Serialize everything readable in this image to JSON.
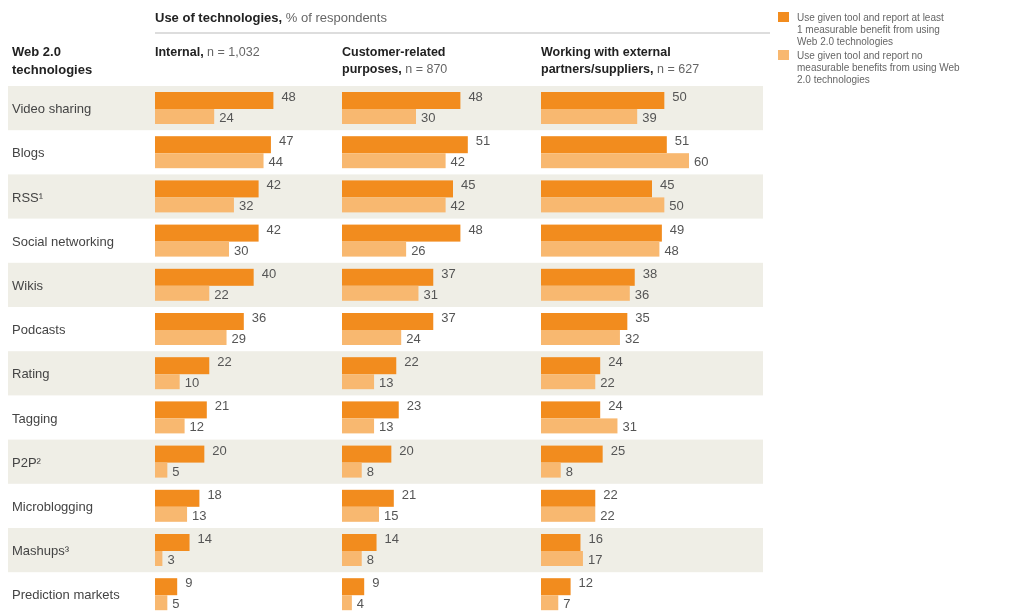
{
  "chart_data": [
    {
      "type": "bar",
      "orientation": "horizontal",
      "title": "Use of technologies, % of respondents",
      "subtitle": "Internal, n = 1,032",
      "ylabel": "Web 2.0 technologies",
      "categories": [
        "Video sharing",
        "Blogs",
        "RSS¹",
        "Social networking",
        "Wikis",
        "Podcasts",
        "Rating",
        "Tagging",
        "P2P²",
        "Microblogging",
        "Mashups³",
        "Prediction markets"
      ],
      "tick_labels": "y",
      "data_labels": true,
      "legend": "top right",
      "series": [
        {
          "name": "Use given tool and report at least 1 measurable benefit from using Web 2.0 technologies",
          "color": "#f28c1e",
          "values": [
            48,
            47,
            42,
            42,
            40,
            36,
            22,
            21,
            20,
            18,
            14,
            9
          ]
        },
        {
          "name": "Use given tool and report no measurable benefits from using Web 2.0 technologies",
          "color": "#f8b870",
          "values": [
            24,
            44,
            32,
            30,
            22,
            29,
            10,
            12,
            5,
            13,
            3,
            5
          ]
        }
      ]
    },
    {
      "type": "bar",
      "orientation": "horizontal",
      "subtitle": "Customer-related purposes, n = 870",
      "categories": [
        null,
        null,
        null,
        null,
        null,
        null,
        null,
        null,
        null,
        null,
        null,
        null
      ],
      "tick_labels": false,
      "data_labels": true,
      "series": [
        {
          "color": "#f28c1e",
          "values": [
            48,
            51,
            45,
            48,
            37,
            37,
            22,
            23,
            20,
            21,
            14,
            9
          ]
        },
        {
          "color": "#f8b870",
          "values": [
            30,
            42,
            42,
            26,
            31,
            24,
            13,
            13,
            8,
            15,
            8,
            4
          ]
        }
      ]
    },
    {
      "type": "bar",
      "orientation": "horizontal",
      "subtitle": "Working with external partners/suppliers, n = 627",
      "categories": [
        null,
        null,
        null,
        null,
        null,
        null,
        null,
        null,
        null,
        null,
        null,
        null
      ],
      "tick_labels": false,
      "data_labels": true,
      "series": [
        {
          "color": "#f28c1e",
          "values": [
            50,
            51,
            45,
            49,
            38,
            35,
            24,
            24,
            25,
            22,
            16,
            12
          ]
        },
        {
          "color": "#f8b870",
          "values": [
            39,
            60,
            50,
            48,
            36,
            32,
            22,
            31,
            8,
            22,
            17,
            7
          ]
        }
      ]
    }
  ]
}
